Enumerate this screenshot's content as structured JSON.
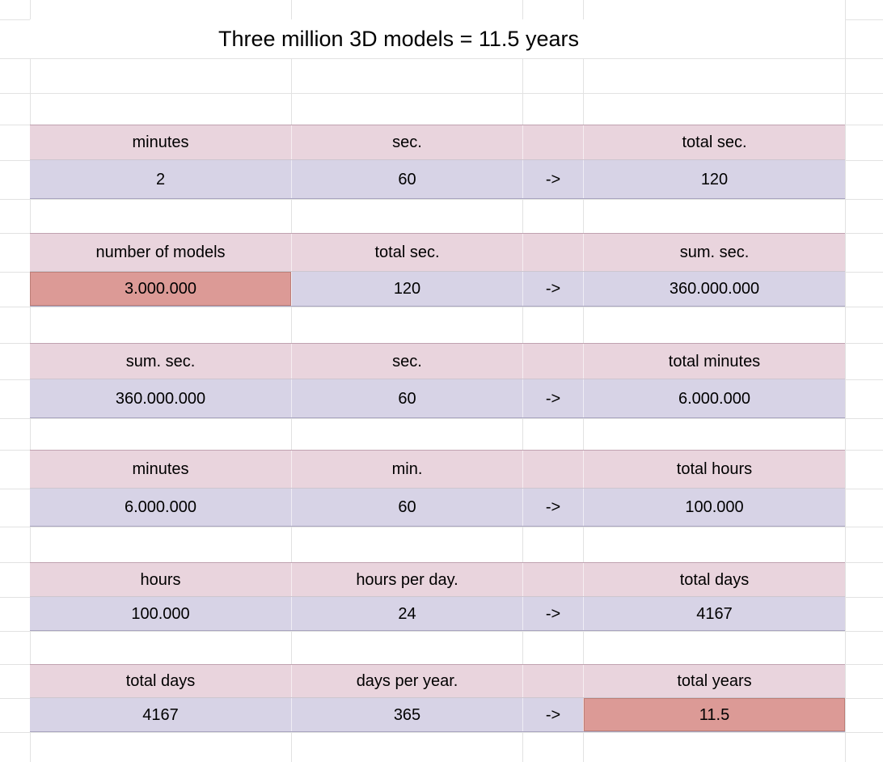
{
  "sheet": {
    "title": "Three million 3D models = 11.5 years",
    "colors": {
      "header_fill": "#e9d4dd",
      "value_fill": "#d7d3e6",
      "highlight_fill": "#dc9a96",
      "gridline": "#e2e2e2"
    },
    "blocks": [
      {
        "header": [
          "minutes",
          "sec.",
          "",
          "total sec."
        ],
        "values": [
          "2",
          "60",
          "->",
          "120"
        ]
      },
      {
        "header": [
          "number of models",
          "total sec.",
          "",
          "sum. sec."
        ],
        "values": [
          "3.000.000",
          "120",
          "->",
          "360.000.000"
        ]
      },
      {
        "header": [
          "sum. sec.",
          "sec.",
          "",
          "total minutes"
        ],
        "values": [
          "360.000.000",
          "60",
          "->",
          "6.000.000"
        ]
      },
      {
        "header": [
          "minutes",
          "min.",
          "",
          "total hours"
        ],
        "values": [
          "6.000.000",
          "60",
          "->",
          "100.000"
        ]
      },
      {
        "header": [
          "hours",
          "hours per day.",
          "",
          "total days"
        ],
        "values": [
          "100.000",
          "24",
          "->",
          "4167"
        ]
      },
      {
        "header": [
          "total days",
          "days per year.",
          "",
          "total years"
        ],
        "values": [
          "4167",
          "365",
          "->",
          "11.5"
        ]
      }
    ]
  }
}
